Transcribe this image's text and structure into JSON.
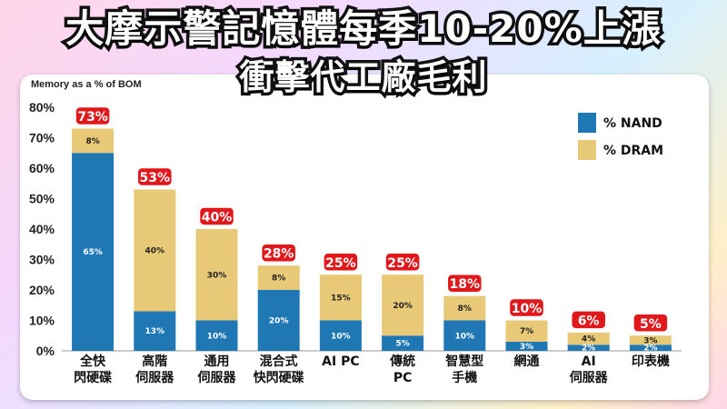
{
  "headline": {
    "line1": "大摩示警記憶體每季10-20%上漲",
    "line2": "衝擊代工廠毛利"
  },
  "colors": {
    "nand": "#1f77b4",
    "dram": "#e7c978",
    "total_badge": "#e0181b",
    "badge_text": "#ffffff"
  },
  "chart_data": {
    "type": "bar",
    "stacked": true,
    "subtitle": "Memory as a % of BOM",
    "ylim": [
      0,
      80
    ],
    "yticks": [
      "0%",
      "10%",
      "20%",
      "30%",
      "40%",
      "50%",
      "60%",
      "70%",
      "80%"
    ],
    "legend_placement": "top-right",
    "categories": [
      [
        "全快",
        "閃硬碟"
      ],
      [
        "高階",
        "伺服器"
      ],
      [
        "通用",
        "伺服器"
      ],
      [
        "混合式",
        "快閃硬碟"
      ],
      [
        "AI PC"
      ],
      [
        "傳統",
        "PC"
      ],
      [
        "智慧型",
        "手機"
      ],
      [
        "網通"
      ],
      [
        "AI",
        "伺服器"
      ],
      [
        "印表機"
      ]
    ],
    "series": [
      {
        "name": "% NAND",
        "values": [
          65,
          13,
          10,
          20,
          10,
          5,
          10,
          3,
          2,
          2
        ],
        "labels": [
          "65%",
          "13%",
          "10%",
          "20%",
          "10%",
          "5%",
          "10%",
          "3%",
          "2%",
          "2%"
        ]
      },
      {
        "name": "% DRAM",
        "values": [
          8,
          40,
          30,
          8,
          15,
          20,
          8,
          7,
          4,
          3
        ],
        "labels": [
          "8%",
          "40%",
          "30%",
          "8%",
          "15%",
          "20%",
          "8%",
          "7%",
          "4%",
          "3%"
        ]
      }
    ],
    "totals": [
      "73%",
      "53%",
      "40%",
      "28%",
      "25%",
      "25%",
      "18%",
      "10%",
      "6%",
      "5%"
    ]
  }
}
